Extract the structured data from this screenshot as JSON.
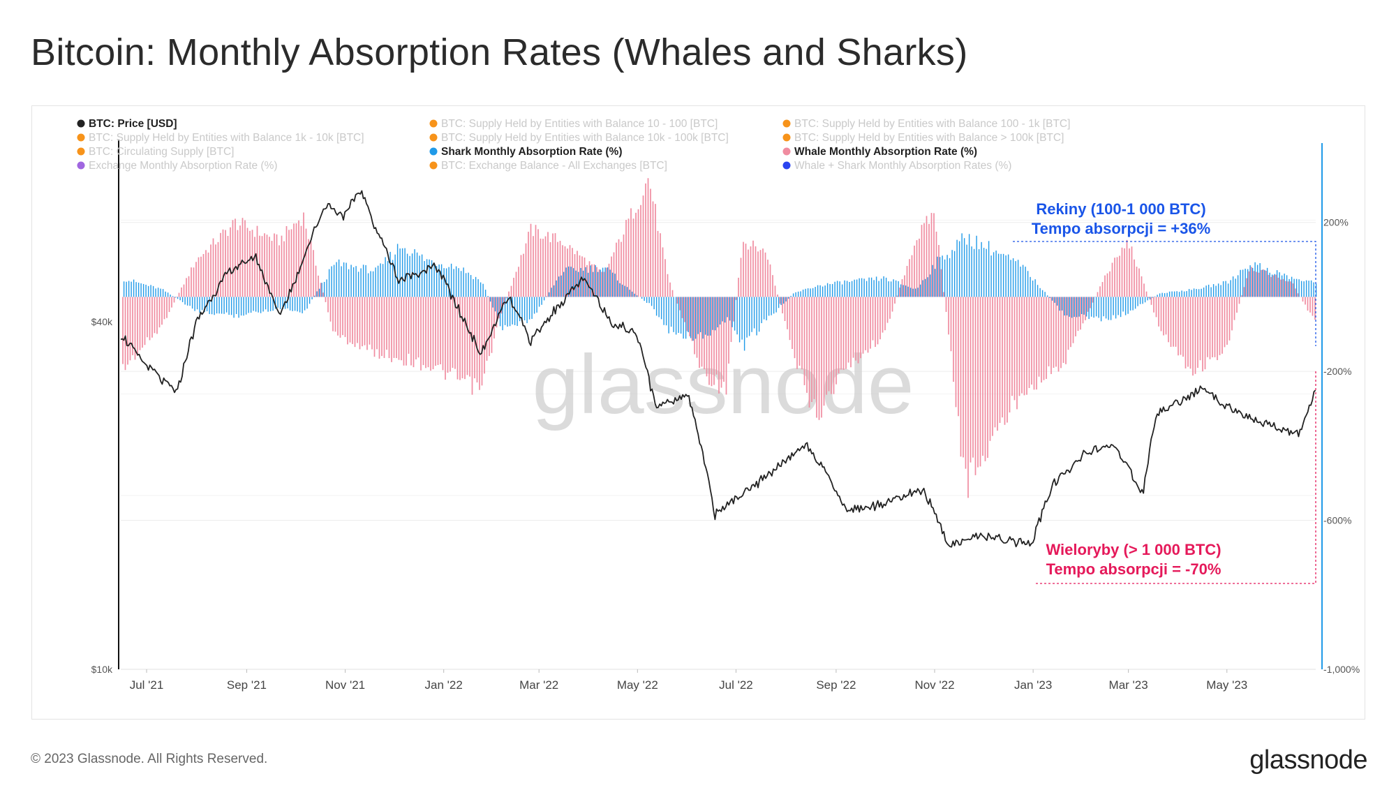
{
  "title": "Bitcoin: Monthly Absorption Rates (Whales and Sharks)",
  "footer": {
    "copyright": "© 2023 Glassnode. All Rights Reserved.",
    "brand": "glassnode",
    "watermark": "glassnode"
  },
  "legend": [
    {
      "label": "BTC: Price [USD]",
      "color": "#222222",
      "active": true
    },
    {
      "label": "BTC: Supply Held by Entities with Balance 10 - 100 [BTC]",
      "color": "#f7931a",
      "active": false
    },
    {
      "label": "BTC: Supply Held by Entities with Balance 100 - 1k [BTC]",
      "color": "#f7931a",
      "active": false
    },
    {
      "label": "BTC: Supply Held by Entities with Balance 1k - 10k [BTC]",
      "color": "#f7931a",
      "active": false
    },
    {
      "label": "BTC: Supply Held by Entities with Balance 10k - 100k [BTC]",
      "color": "#f7931a",
      "active": false
    },
    {
      "label": "BTC: Supply Held by Entities with Balance > 100k [BTC]",
      "color": "#f7931a",
      "active": false
    },
    {
      "label": "BTC: Circulating Supply [BTC]",
      "color": "#f7931a",
      "active": false
    },
    {
      "label": "Shark Monthly Absorption Rate (%)",
      "color": "#1f9ae8",
      "active": true
    },
    {
      "label": "Whale Monthly Absorption Rate (%)",
      "color": "#f08ca0",
      "active": true
    },
    {
      "label": "Exchange Monthly Absorption Rate (%)",
      "color": "#a066e0",
      "active": false
    },
    {
      "label": "BTC: Exchange Balance - All Exchanges [BTC]",
      "color": "#f7931a",
      "active": false
    },
    {
      "label": "Whale + Shark Monthly Absorption Rates (%)",
      "color": "#2a44f0",
      "active": false
    }
  ],
  "annotations": {
    "sharks": {
      "line1": "Rekiny (100-1 000 BTC)",
      "line2": "Tempo absorpcji = +36%",
      "color": "#1a55e8"
    },
    "whales": {
      "line1": "Wieloryby (> 1 000 BTC)",
      "line2": "Tempo absorpcji = -70%",
      "color": "#e5195a"
    }
  },
  "chart_data": {
    "type": "line+bar",
    "x_ticks": [
      "Jul '21",
      "Sep '21",
      "Nov '21",
      "Jan '22",
      "Mar '22",
      "May '22",
      "Jul '22",
      "Sep '22",
      "Nov '22",
      "Jan '23",
      "Mar '23",
      "May '23"
    ],
    "left_axis": {
      "scale": "log",
      "ticks": [
        "$40k",
        "$10k"
      ],
      "range": [
        10000,
        80000
      ]
    },
    "right_axis": {
      "scale": "linear",
      "ticks": [
        "200%",
        "-200%",
        "-600%",
        "-1,000%"
      ],
      "range": [
        -1000,
        400
      ]
    },
    "price_series": {
      "name": "BTC: Price [USD]",
      "color": "#222222",
      "points": [
        [
          "2021-06-15",
          38000
        ],
        [
          "2021-07-01",
          33500
        ],
        [
          "2021-07-20",
          30000
        ],
        [
          "2021-08-01",
          40000
        ],
        [
          "2021-08-20",
          48500
        ],
        [
          "2021-09-06",
          52000
        ],
        [
          "2021-09-21",
          41000
        ],
        [
          "2021-10-01",
          47000
        ],
        [
          "2021-10-20",
          64000
        ],
        [
          "2021-11-01",
          61000
        ],
        [
          "2021-11-10",
          68000
        ],
        [
          "2021-11-20",
          58000
        ],
        [
          "2021-12-04",
          47000
        ],
        [
          "2021-12-27",
          50000
        ],
        [
          "2022-01-10",
          42000
        ],
        [
          "2022-01-24",
          35000
        ],
        [
          "2022-02-10",
          44000
        ],
        [
          "2022-02-24",
          37000
        ],
        [
          "2022-03-28",
          47500
        ],
        [
          "2022-04-15",
          40000
        ],
        [
          "2022-05-01",
          38000
        ],
        [
          "2022-05-12",
          28500
        ],
        [
          "2022-06-01",
          30000
        ],
        [
          "2022-06-18",
          18500
        ],
        [
          "2022-07-10",
          20500
        ],
        [
          "2022-08-14",
          24500
        ],
        [
          "2022-09-07",
          19000
        ],
        [
          "2022-09-20",
          19000
        ],
        [
          "2022-10-25",
          20500
        ],
        [
          "2022-11-09",
          16500
        ],
        [
          "2022-11-30",
          17000
        ],
        [
          "2022-12-31",
          16500
        ],
        [
          "2023-01-14",
          21000
        ],
        [
          "2023-02-01",
          23500
        ],
        [
          "2023-02-20",
          24500
        ],
        [
          "2023-03-10",
          20000
        ],
        [
          "2023-03-18",
          27500
        ],
        [
          "2023-04-14",
          30500
        ],
        [
          "2023-05-10",
          27500
        ],
        [
          "2023-06-15",
          25500
        ],
        [
          "2023-06-25",
          30500
        ]
      ]
    },
    "whale_series": {
      "name": "Whale Monthly Absorption Rate (%)",
      "color": "#f08ca0",
      "points": [
        [
          "2021-06-15",
          -200
        ],
        [
          "2021-07-10",
          -80
        ],
        [
          "2021-08-01",
          100
        ],
        [
          "2021-08-25",
          200
        ],
        [
          "2021-09-21",
          150
        ],
        [
          "2021-10-06",
          220
        ],
        [
          "2021-10-25",
          -100
        ],
        [
          "2021-11-20",
          -150
        ],
        [
          "2021-12-20",
          -180
        ],
        [
          "2022-01-10",
          -220
        ],
        [
          "2022-01-24",
          -250
        ],
        [
          "2022-02-05",
          -50
        ],
        [
          "2022-02-24",
          180
        ],
        [
          "2022-03-15",
          150
        ],
        [
          "2022-04-10",
          60
        ],
        [
          "2022-04-25",
          200
        ],
        [
          "2022-05-08",
          320
        ],
        [
          "2022-05-20",
          50
        ],
        [
          "2022-06-10",
          -200
        ],
        [
          "2022-06-25",
          -250
        ],
        [
          "2022-07-05",
          150
        ],
        [
          "2022-07-20",
          120
        ],
        [
          "2022-08-05",
          -150
        ],
        [
          "2022-08-20",
          -320
        ],
        [
          "2022-09-05",
          -200
        ],
        [
          "2022-10-01",
          -100
        ],
        [
          "2022-10-20",
          150
        ],
        [
          "2022-11-01",
          230
        ],
        [
          "2022-11-20",
          -500
        ],
        [
          "2022-12-05",
          -400
        ],
        [
          "2022-12-25",
          -250
        ],
        [
          "2023-01-20",
          -180
        ],
        [
          "2023-02-15",
          60
        ],
        [
          "2023-03-01",
          150
        ],
        [
          "2023-03-20",
          -80
        ],
        [
          "2023-04-10",
          -200
        ],
        [
          "2023-05-01",
          -140
        ],
        [
          "2023-05-15",
          80
        ],
        [
          "2023-06-10",
          40
        ],
        [
          "2023-06-25",
          -70
        ]
      ]
    },
    "shark_series": {
      "name": "Shark Monthly Absorption Rate (%)",
      "color": "#1f9ae8",
      "points": [
        [
          "2021-06-15",
          50
        ],
        [
          "2021-07-10",
          20
        ],
        [
          "2021-08-01",
          -40
        ],
        [
          "2021-08-25",
          -50
        ],
        [
          "2021-09-21",
          -30
        ],
        [
          "2021-10-06",
          -40
        ],
        [
          "2021-10-25",
          90
        ],
        [
          "2021-11-20",
          70
        ],
        [
          "2021-12-05",
          140
        ],
        [
          "2021-12-20",
          100
        ],
        [
          "2022-01-10",
          80
        ],
        [
          "2022-01-24",
          40
        ],
        [
          "2022-02-05",
          -80
        ],
        [
          "2022-02-24",
          -60
        ],
        [
          "2022-03-15",
          70
        ],
        [
          "2022-04-10",
          80
        ],
        [
          "2022-04-25",
          20
        ],
        [
          "2022-05-08",
          -20
        ],
        [
          "2022-05-20",
          -90
        ],
        [
          "2022-06-10",
          -110
        ],
        [
          "2022-06-25",
          -60
        ],
        [
          "2022-07-05",
          -130
        ],
        [
          "2022-07-20",
          -60
        ],
        [
          "2022-08-05",
          10
        ],
        [
          "2022-08-20",
          30
        ],
        [
          "2022-09-05",
          40
        ],
        [
          "2022-10-01",
          50
        ],
        [
          "2022-10-20",
          20
        ],
        [
          "2022-11-01",
          90
        ],
        [
          "2022-11-20",
          160
        ],
        [
          "2022-12-05",
          130
        ],
        [
          "2022-12-25",
          80
        ],
        [
          "2023-01-20",
          -50
        ],
        [
          "2023-02-15",
          -60
        ],
        [
          "2023-03-01",
          -40
        ],
        [
          "2023-03-20",
          10
        ],
        [
          "2023-04-10",
          20
        ],
        [
          "2023-05-01",
          40
        ],
        [
          "2023-05-15",
          90
        ],
        [
          "2023-06-10",
          50
        ],
        [
          "2023-06-25",
          36
        ]
      ]
    }
  }
}
